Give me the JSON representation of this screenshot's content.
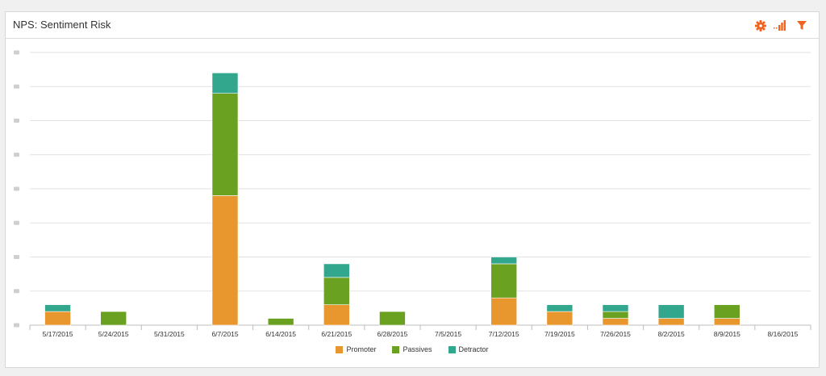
{
  "panel": {
    "title": "NPS: Sentiment Risk"
  },
  "toolbar": {
    "icons": [
      "gear-icon",
      "bar-chart-icon",
      "filter-icon"
    ],
    "accent_color": "#f0641e"
  },
  "chart_data": {
    "type": "bar",
    "stacked": true,
    "title": "NPS: Sentiment Risk",
    "xlabel": "",
    "ylabel": "",
    "ylim": [
      0,
      8
    ],
    "grid": true,
    "legend_position": "bottom-center",
    "categories": [
      "5/17/2015",
      "5/24/2015",
      "5/31/2015",
      "6/7/2015",
      "6/14/2015",
      "6/21/2015",
      "6/28/2015",
      "7/5/2015",
      "7/12/2015",
      "7/19/2015",
      "7/26/2015",
      "8/2/2015",
      "8/9/2015",
      "8/16/2015"
    ],
    "series": [
      {
        "name": "Promoter",
        "color": "#e8962e",
        "values": [
          0.4,
          0,
          0,
          3.8,
          0,
          0.6,
          0,
          0,
          0.8,
          0.4,
          0.2,
          0.2,
          0.2,
          0
        ]
      },
      {
        "name": "Passives",
        "color": "#6aa120",
        "values": [
          0,
          0.4,
          0,
          3.0,
          0.2,
          0.8,
          0.4,
          0,
          1.0,
          0,
          0.2,
          0,
          0.4,
          0
        ]
      },
      {
        "name": "Detractor",
        "color": "#33a68e",
        "values": [
          0.2,
          0,
          0,
          0.6,
          0,
          0.4,
          0,
          0,
          0.2,
          0.2,
          0.2,
          0.4,
          0,
          0
        ]
      }
    ]
  }
}
